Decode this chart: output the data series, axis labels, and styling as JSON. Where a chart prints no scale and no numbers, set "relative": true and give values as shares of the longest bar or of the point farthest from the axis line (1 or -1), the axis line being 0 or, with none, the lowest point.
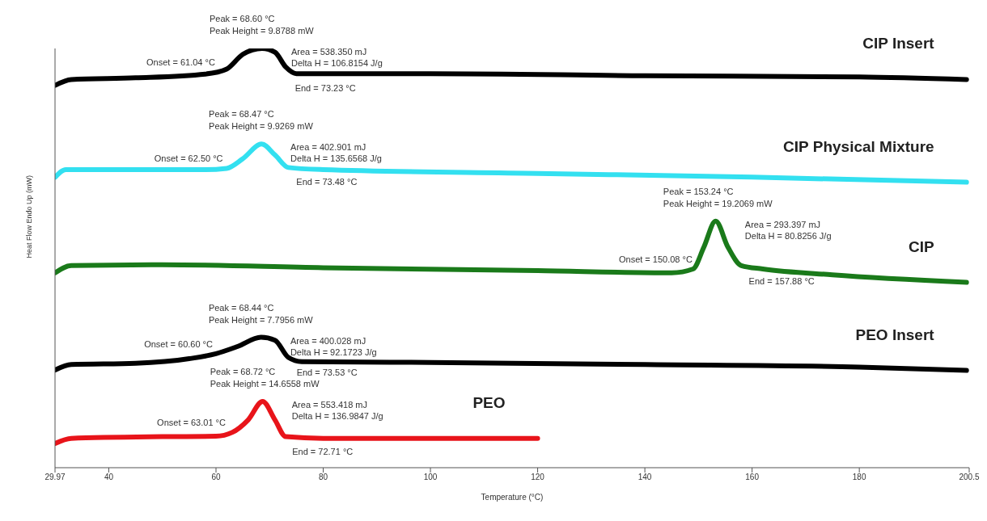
{
  "chart_data": {
    "type": "line",
    "xlabel": "Temperature (°C)",
    "ylabel": "Heat Flow Endo Up (mW)",
    "relative": true,
    "xlim": [
      29.97,
      200.5
    ],
    "xticks": [
      29.97,
      40,
      60,
      80,
      100,
      120,
      140,
      160,
      180,
      {
        "value": 200.5,
        "label": "200.5"
      }
    ],
    "marker": "none",
    "line_style": "solid",
    "series": [
      {
        "name": "CIP Insert",
        "color": "#000000",
        "x": [
          30,
          33,
          45,
          58,
          62,
          65,
          68.6,
          71,
          73,
          75,
          100,
          140,
          180,
          200
        ],
        "values": [
          0.912,
          0.926,
          0.93,
          0.939,
          0.951,
          0.986,
          1.0,
          0.991,
          0.956,
          0.94,
          0.94,
          0.935,
          0.932,
          0.926
        ]
      },
      {
        "name": "CIP Physical Mixture",
        "color": "#33e0f0",
        "x": [
          30,
          32,
          58,
          62,
          65,
          68.5,
          71,
          73.5,
          80,
          120,
          160,
          200
        ],
        "values": [
          0.693,
          0.711,
          0.711,
          0.714,
          0.737,
          0.772,
          0.746,
          0.716,
          0.711,
          0.702,
          0.693,
          0.681
        ]
      },
      {
        "name": "CIP",
        "color": "#1a7a1a",
        "x": [
          30,
          33,
          50,
          80,
          120,
          145,
          149,
          151,
          153.2,
          155.5,
          158,
          162,
          175,
          200
        ],
        "values": [
          0.465,
          0.482,
          0.484,
          0.477,
          0.47,
          0.465,
          0.474,
          0.526,
          0.588,
          0.526,
          0.482,
          0.474,
          0.46,
          0.442
        ]
      },
      {
        "name": "PEO Insert",
        "color": "#000000",
        "x": [
          30,
          33,
          45,
          55,
          60,
          64,
          68.4,
          71,
          73.5,
          76,
          100,
          140,
          180,
          200
        ],
        "values": [
          0.233,
          0.246,
          0.249,
          0.26,
          0.272,
          0.289,
          0.311,
          0.304,
          0.263,
          0.253,
          0.251,
          0.246,
          0.24,
          0.232
        ]
      },
      {
        "name": "PEO",
        "color": "#e8141a",
        "x": [
          30,
          33,
          50,
          60,
          63,
          66,
          68.7,
          71,
          73,
          80,
          120
        ],
        "values": [
          0.058,
          0.07,
          0.074,
          0.075,
          0.084,
          0.114,
          0.158,
          0.114,
          0.074,
          0.07,
          0.07
        ]
      }
    ],
    "annotations": [
      {
        "text": "Peak = 68.60 °C",
        "x": 68.6,
        "y": 1.0
      },
      {
        "text": "Peak Height = 9.8788 mW",
        "x": 68.6,
        "y": 1.0
      },
      "Area = 538.350 mJ",
      "Delta H = 106.8154 J/g",
      {
        "text": "Onset = 61.04 °C",
        "x": 61.04,
        "y": 0.945
      },
      {
        "text": "End = 73.23 °C",
        "x": 73.23,
        "y": 0.94
      },
      {
        "text": "Peak = 68.47 °C",
        "x": 68.47,
        "y": 0.772
      },
      {
        "text": "Peak Height = 9.9269 mW",
        "x": 68.47,
        "y": 0.772
      },
      "Area = 402.901 mJ",
      "Delta H = 135.6568 J/g",
      {
        "text": "Onset = 62.50 °C",
        "x": 62.5,
        "y": 0.714
      },
      {
        "text": "End = 73.48 °C",
        "x": 73.48,
        "y": 0.716
      },
      {
        "text": "Peak = 153.24 °C",
        "x": 153.24,
        "y": 0.588
      },
      {
        "text": "Peak Height = 19.2069 mW",
        "x": 153.24,
        "y": 0.588
      },
      "Area = 293.397 mJ",
      "Delta H = 80.8256 J/g",
      {
        "text": "Onset = 150.08 °C",
        "x": 150.08,
        "y": 0.474
      },
      {
        "text": "End = 157.88 °C",
        "x": 157.88,
        "y": 0.48
      },
      {
        "text": "Peak = 68.44 °C",
        "x": 68.44,
        "y": 0.311
      },
      {
        "text": "Peak Height = 7.7956 mW",
        "x": 68.44,
        "y": 0.311
      },
      "Area = 400.028 mJ",
      "Delta H = 92.1723 J/g",
      {
        "text": "Onset = 60.60 °C",
        "x": 60.6,
        "y": 0.272
      },
      {
        "text": "End = 73.53 °C",
        "x": 73.53,
        "y": 0.263
      },
      {
        "text": "Peak = 68.72 °C",
        "x": 68.72,
        "y": 0.158
      },
      {
        "text": "Peak Height = 14.6558 mW",
        "x": 68.72,
        "y": 0.158
      },
      "Area = 553.418 mJ",
      "Delta H = 136.9847 J/g",
      {
        "text": "Onset = 63.01 °C",
        "x": 63.01,
        "y": 0.084
      },
      {
        "text": "End = 72.71 °C",
        "x": 72.71,
        "y": 0.074
      }
    ]
  }
}
